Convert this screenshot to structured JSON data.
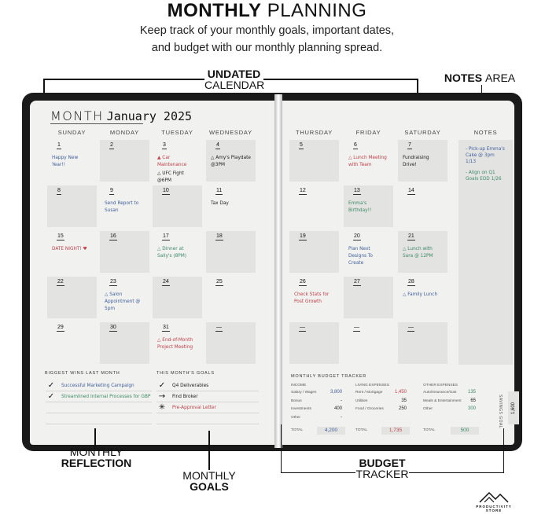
{
  "header": {
    "title_bold": "MONTHLY",
    "title_light": "PLANNING",
    "subtitle_1": "Keep track of your monthly goals, important dates,",
    "subtitle_2": "and budget with our monthly planning spread."
  },
  "callouts": {
    "calendar_bold": "UNDATED",
    "calendar_light": "CALENDAR",
    "notes_bold": "NOTES",
    "notes_light": "AREA",
    "reflection_light": "MONTHLY",
    "reflection_bold": "REFLECTION",
    "goals_light": "MONTHLY",
    "goals_bold": "GOALS",
    "budget_bold": "BUDGET",
    "budget_light": "TRACKER"
  },
  "planner": {
    "month_label": "MONTH",
    "month_value": "January 2025",
    "days": [
      "SUNDAY",
      "MONDAY",
      "TUESDAY",
      "WEDNESDAY",
      "THURSDAY",
      "FRIDAY",
      "SATURDAY"
    ],
    "notes_label": "NOTES",
    "weeks": [
      [
        {
          "n": "1",
          "e": "Happy New Year!!",
          "c": "#3f5f9a"
        },
        {
          "n": "2"
        },
        {
          "n": "3",
          "e": "▲ Car Maintenance",
          "c": "#c0424a",
          "e2": "△ UFC Fight @6PM"
        },
        {
          "n": "4",
          "e": "△ Amy's Playdate @3PM",
          "c": "#222"
        },
        {
          "n": "5"
        },
        {
          "n": "6",
          "e": "△ Lunch Meeting with Team",
          "c": "#c0424a"
        },
        {
          "n": "7",
          "e": "Fundraising Drive!",
          "c": "#222"
        }
      ],
      [
        {
          "n": "8"
        },
        {
          "n": "9",
          "e": "Send Report to Susan",
          "c": "#3f5f9a"
        },
        {
          "n": "10"
        },
        {
          "n": "11",
          "e": "Tax Day",
          "c": "#222"
        },
        {
          "n": "12"
        },
        {
          "n": "13",
          "e": "Emma's Birthday!!",
          "c": "#3d8a66"
        },
        {
          "n": "14"
        }
      ],
      [
        {
          "n": "15",
          "e": "DATE NIGHT! ♥",
          "c": "#c0424a"
        },
        {
          "n": "16"
        },
        {
          "n": "17",
          "e": "△ Dinner at Sally's (8PM)",
          "c": "#3d8a66"
        },
        {
          "n": "18"
        },
        {
          "n": "19"
        },
        {
          "n": "20",
          "e": "Plan Next Designs To Create",
          "c": "#3f5f9a"
        },
        {
          "n": "21",
          "e": "△ Lunch with Sara @ 12PM",
          "c": "#3d8a66"
        }
      ],
      [
        {
          "n": "22"
        },
        {
          "n": "23",
          "e": "△ Salon Appointment @ 5pm",
          "c": "#3f5f9a"
        },
        {
          "n": "24"
        },
        {
          "n": "25"
        },
        {
          "n": "26",
          "e": "Check Stats for Post Growth",
          "c": "#c0424a"
        },
        {
          "n": "27"
        },
        {
          "n": "28",
          "e": "△ Family Lunch",
          "c": "#3f5f9a"
        }
      ],
      [
        {
          "n": "29"
        },
        {
          "n": "30"
        },
        {
          "n": "31",
          "e": "△ End-of-Month Project Meeting",
          "c": "#c0424a"
        },
        {
          "n": "—"
        },
        {
          "n": "—"
        },
        {
          "n": "—"
        },
        {
          "n": "—"
        }
      ]
    ],
    "notes": [
      {
        "t": "- Pick-up Emma's Cake @ 3pm 1/13",
        "c": "#3f5f9a"
      },
      {
        "t": "- Align on Q1 Goals EOD 1/26",
        "c": "#3d8a66"
      }
    ],
    "wins_title": "BIGGEST WINS LAST MONTH",
    "wins": [
      {
        "mark": "✓",
        "t": "Successful Marketing Campaign",
        "c": "#3f5f9a"
      },
      {
        "mark": "✓",
        "t": "Streamlined Internal Processes for GBP",
        "c": "#3d8a66"
      }
    ],
    "goals_title": "THIS MONTH'S GOALS",
    "goals": [
      {
        "mark": "✓",
        "t": "Q4 Deliverables",
        "c": "#222"
      },
      {
        "mark": "→",
        "t": "Find Broker",
        "c": "#222"
      },
      {
        "mark": "✳",
        "t": "Pre-Approval Letter",
        "c": "#c0424a"
      }
    ],
    "budget": {
      "title": "MONTHLY BUDGET TRACKER",
      "income": {
        "h": "INCOME",
        "rows": [
          [
            "Salary / Wages",
            "3,800"
          ],
          [
            "Bonus",
            "-"
          ],
          [
            "Investments",
            "400"
          ],
          [
            "Other",
            "-"
          ]
        ],
        "total_label": "TOTAL",
        "total": "4,200",
        "color": "#3f5f9a"
      },
      "living": {
        "h": "LIVING EXPENSES",
        "rows": [
          [
            "Rent / Mortgage",
            "1,450"
          ],
          [
            "Utilities",
            "35"
          ],
          [
            "Food / Groceries",
            "250"
          ]
        ],
        "total_label": "TOTAL",
        "total": "1,735",
        "color": "#c0424a"
      },
      "other": {
        "h": "OTHER EXPENSES",
        "rows": [
          [
            "Auto/Insurance/Gas",
            "135"
          ],
          [
            "Meals & Entertainment",
            "65"
          ],
          [
            "Other",
            "300"
          ]
        ],
        "total_label": "TOTAL",
        "total": "500",
        "color": "#3d8a66"
      },
      "savings_label": "SAVINGS GOAL",
      "savings": "1,600"
    }
  },
  "brand": "PRODUCTIVITY STORE"
}
